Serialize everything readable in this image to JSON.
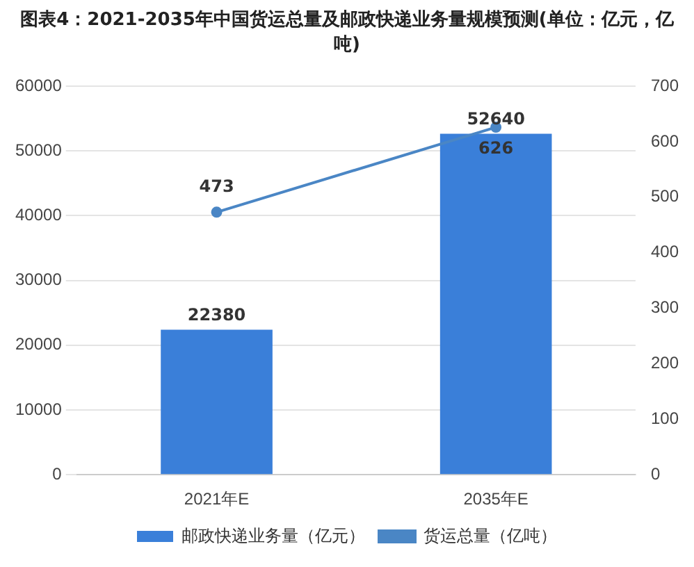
{
  "chart_data": {
    "type": "bar",
    "title": "图表4：2021-2035年中国货运总量及邮政快递业务量规模预测(单位：亿元，亿吨)",
    "categories": [
      "2021年E",
      "2035年E"
    ],
    "series": [
      {
        "name": "邮政快递业务量（亿元）",
        "color": "#3a7fd9",
        "values": [
          22380,
          52640
        ]
      },
      {
        "name": "货运总量（亿吨）",
        "type": "line",
        "axis": "y2",
        "color": "#4a86c5",
        "values": [
          473,
          626
        ]
      }
    ],
    "ylim": [
      0,
      60000
    ],
    "yticks": [
      0,
      10000,
      20000,
      30000,
      40000,
      50000,
      60000
    ],
    "y2lim": [
      0,
      700
    ],
    "y2ticks": [
      0,
      100,
      200,
      300,
      400,
      500,
      600,
      700
    ],
    "grid": "y",
    "legend": "bottom",
    "marker": "circle",
    "data_labels": true
  }
}
